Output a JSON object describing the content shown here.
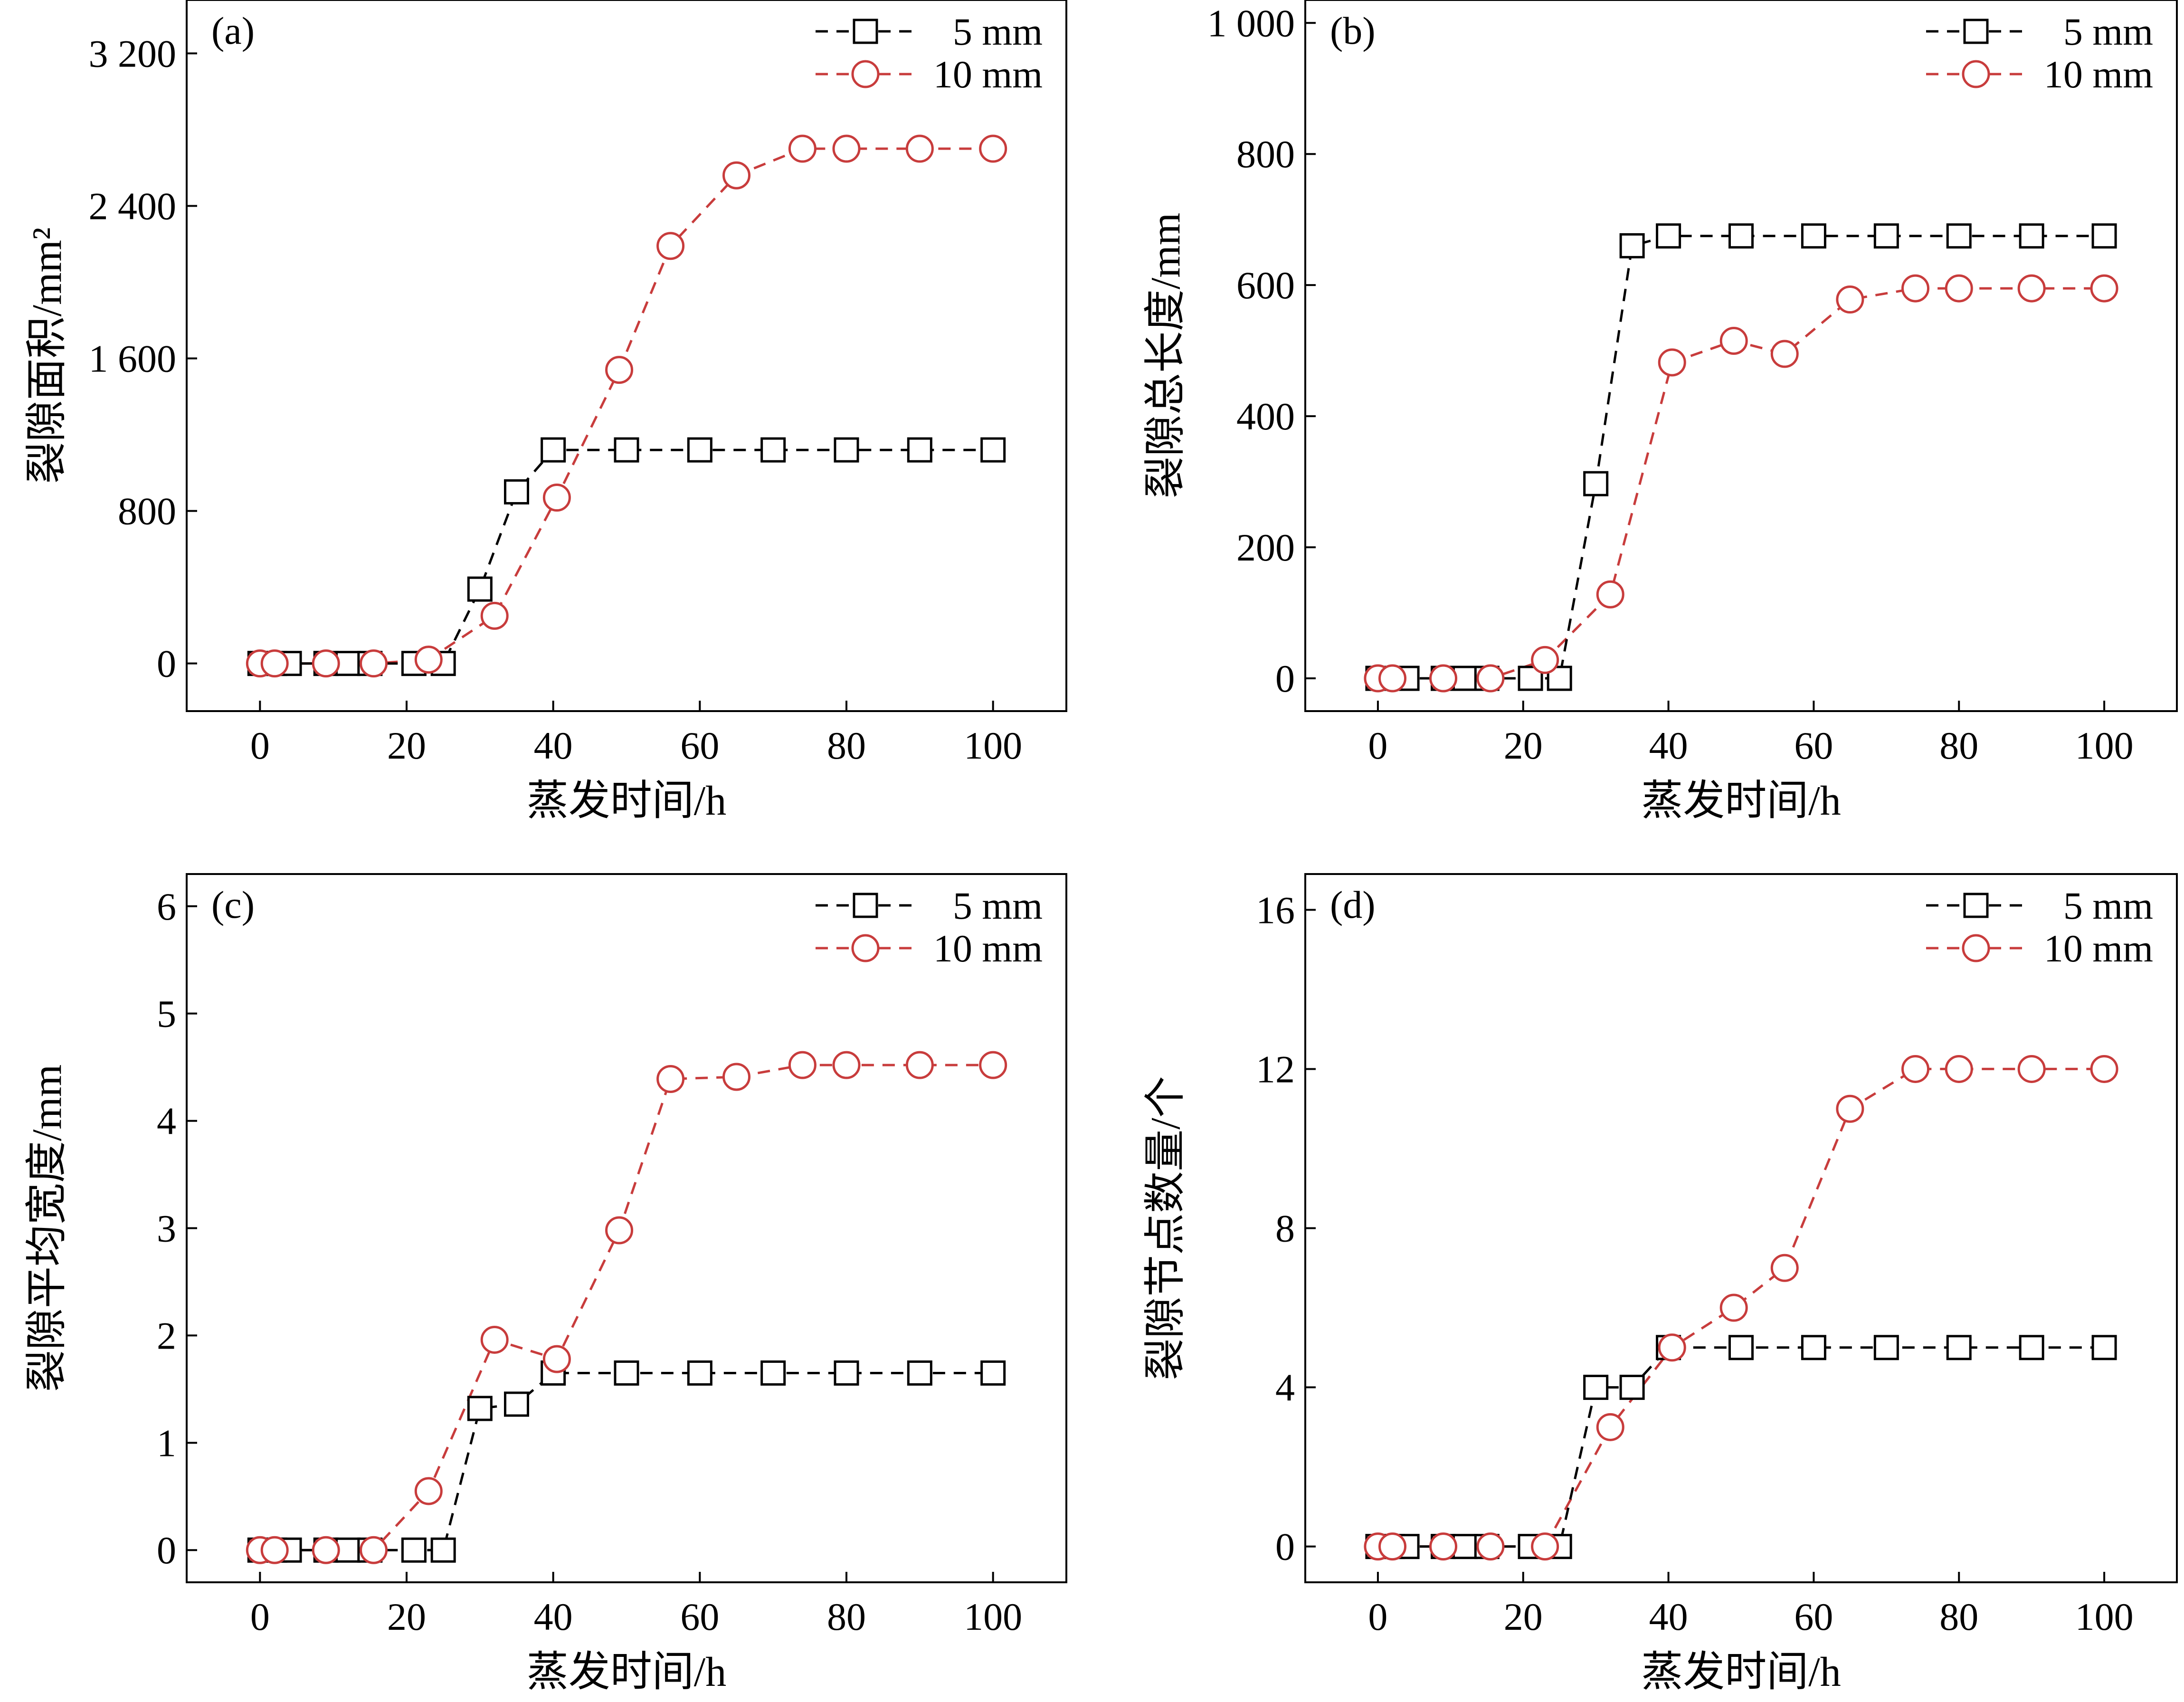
{
  "colors": {
    "series_5mm": "#000000",
    "series_10mm": "#c83c3c"
  },
  "chart_data": [
    {
      "type": "line",
      "panel_label": "(a)",
      "xlabel": "蒸发时间/h",
      "ylabel": "裂隙面积/mm²",
      "xlim": [
        -10,
        110
      ],
      "ylim": [
        -250,
        3480
      ],
      "xticks": [
        0,
        20,
        40,
        60,
        80,
        100
      ],
      "xtick_labels": [
        "0",
        "20",
        "40",
        "60",
        "80",
        "100"
      ],
      "yticks": [
        0,
        800,
        1600,
        2400,
        3200
      ],
      "ytick_labels": [
        "0",
        "800",
        "1 600",
        "2 400",
        "3 200"
      ],
      "legend_position": "top-right",
      "series": [
        {
          "name": "5 mm",
          "marker": "square",
          "color": "#000000",
          "x": [
            0,
            2,
            4,
            9,
            12,
            15,
            21,
            25,
            30,
            35,
            40,
            50,
            60,
            70,
            80,
            90,
            100
          ],
          "y": [
            0,
            0,
            0,
            0,
            0,
            0,
            0,
            0,
            390,
            900,
            1120,
            1120,
            1120,
            1120,
            1120,
            1120,
            1120
          ]
        },
        {
          "name": "10 mm",
          "marker": "circle",
          "color": "#c83c3c",
          "x": [
            0,
            2,
            9,
            15.5,
            23,
            32,
            40.5,
            49,
            56,
            65,
            74,
            80,
            90,
            100
          ],
          "y": [
            0,
            0,
            0,
            0,
            20,
            250,
            870,
            1540,
            2190,
            2560,
            2700,
            2700,
            2700,
            2700
          ]
        }
      ]
    },
    {
      "type": "line",
      "panel_label": "(b)",
      "xlabel": "蒸发时间/h",
      "ylabel": "裂隙总长度/mm",
      "xlim": [
        -10,
        110
      ],
      "ylim": [
        -50,
        1035
      ],
      "xticks": [
        0,
        20,
        40,
        60,
        80,
        100
      ],
      "xtick_labels": [
        "0",
        "20",
        "40",
        "60",
        "80",
        "100"
      ],
      "yticks": [
        0,
        200,
        400,
        600,
        800,
        1000
      ],
      "ytick_labels": [
        "0",
        "200",
        "400",
        "600",
        "800",
        "1 000"
      ],
      "legend_position": "top-right",
      "series": [
        {
          "name": "5 mm",
          "marker": "square",
          "color": "#000000",
          "x": [
            0,
            2,
            4,
            9,
            12,
            15,
            21,
            25,
            30,
            35,
            40,
            50,
            60,
            70,
            80,
            90,
            100
          ],
          "y": [
            0,
            0,
            0,
            0,
            0,
            0,
            0,
            0,
            297,
            660,
            675,
            675,
            675,
            675,
            675,
            675,
            675
          ]
        },
        {
          "name": "10 mm",
          "marker": "circle",
          "color": "#c83c3c",
          "x": [
            0,
            2,
            9,
            15.5,
            23,
            32,
            40.5,
            49,
            56,
            65,
            74,
            80,
            90,
            100
          ],
          "y": [
            0,
            0,
            0,
            0,
            28,
            128,
            482,
            515,
            495,
            578,
            595,
            595,
            595,
            595
          ]
        }
      ]
    },
    {
      "type": "line",
      "panel_label": "(c)",
      "xlabel": "蒸发时间/h",
      "ylabel": "裂隙平均宽度/mm",
      "xlim": [
        -10,
        110
      ],
      "ylim": [
        -0.3,
        6.3
      ],
      "xticks": [
        0,
        20,
        40,
        60,
        80,
        100
      ],
      "xtick_labels": [
        "0",
        "20",
        "40",
        "60",
        "80",
        "100"
      ],
      "yticks": [
        0,
        1,
        2,
        3,
        4,
        5,
        6
      ],
      "ytick_labels": [
        "0",
        "1",
        "2",
        "3",
        "4",
        "5",
        "6"
      ],
      "legend_position": "top-right",
      "series": [
        {
          "name": "5 mm",
          "marker": "square",
          "color": "#000000",
          "x": [
            0,
            2,
            4,
            9,
            12,
            15,
            21,
            25,
            30,
            35,
            40,
            50,
            60,
            70,
            80,
            90,
            100
          ],
          "y": [
            0,
            0,
            0,
            0,
            0,
            0,
            0,
            0,
            1.32,
            1.36,
            1.65,
            1.65,
            1.65,
            1.65,
            1.65,
            1.65,
            1.65
          ]
        },
        {
          "name": "10 mm",
          "marker": "circle",
          "color": "#c83c3c",
          "x": [
            0,
            2,
            9,
            15.5,
            23,
            32,
            40.5,
            49,
            56,
            65,
            74,
            80,
            90,
            100
          ],
          "y": [
            0,
            0,
            0,
            0,
            0.55,
            1.96,
            1.78,
            2.98,
            4.39,
            4.41,
            4.52,
            4.52,
            4.52,
            4.52
          ]
        }
      ]
    },
    {
      "type": "line",
      "panel_label": "(d)",
      "xlabel": "蒸发时间/h",
      "ylabel": "裂隙节点数量/个",
      "xlim": [
        -10,
        110
      ],
      "ylim": [
        -0.9,
        16.9
      ],
      "xticks": [
        0,
        20,
        40,
        60,
        80,
        100
      ],
      "xtick_labels": [
        "0",
        "20",
        "40",
        "60",
        "80",
        "100"
      ],
      "yticks": [
        0,
        4,
        8,
        12,
        16
      ],
      "ytick_labels": [
        "0",
        "4",
        "8",
        "12",
        "16"
      ],
      "legend_position": "top-right",
      "series": [
        {
          "name": "5 mm",
          "marker": "square",
          "color": "#000000",
          "x": [
            0,
            2,
            4,
            9,
            12,
            15,
            21,
            25,
            30,
            35,
            40,
            50,
            60,
            70,
            80,
            90,
            100
          ],
          "y": [
            0,
            0,
            0,
            0,
            0,
            0,
            0,
            0,
            4,
            4,
            5,
            5,
            5,
            5,
            5,
            5,
            5
          ]
        },
        {
          "name": "10 mm",
          "marker": "circle",
          "color": "#c83c3c",
          "x": [
            0,
            2,
            9,
            15.5,
            23,
            32,
            40.5,
            49,
            56,
            65,
            74,
            80,
            90,
            100
          ],
          "y": [
            0,
            0,
            0,
            0,
            0,
            3,
            5,
            6,
            7,
            11,
            12,
            12,
            12,
            12
          ]
        }
      ]
    }
  ]
}
